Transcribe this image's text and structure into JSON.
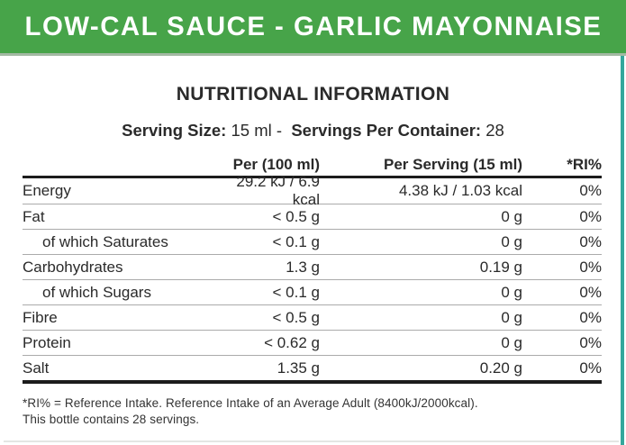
{
  "banner": {
    "title": "LOW-CAL SAUCE - GARLIC MAYONNAISE"
  },
  "section_title": "NUTRITIONAL INFORMATION",
  "serving_info": {
    "serving_size_label": "Serving Size:",
    "serving_size_value": "15 ml",
    "separator": "-",
    "servings_label": "Servings Per Container:",
    "servings_value": "28"
  },
  "table": {
    "columns": {
      "nutrient": "",
      "per_100": "Per (100 ml)",
      "per_serving": "Per Serving (15 ml)",
      "ri": "*RI%"
    },
    "rows": [
      {
        "name": "Energy",
        "per100": "29.2 kJ / 6.9 kcal",
        "perServing": "4.38 kJ / 1.03 kcal",
        "ri": "0%",
        "indent": false
      },
      {
        "name": "Fat",
        "per100": "< 0.5 g",
        "perServing": "0 g",
        "ri": "0%",
        "indent": false
      },
      {
        "name": "of which Saturates",
        "per100": "< 0.1 g",
        "perServing": "0 g",
        "ri": "0%",
        "indent": true
      },
      {
        "name": "Carbohydrates",
        "per100": "1.3 g",
        "perServing": "0.19 g",
        "ri": "0%",
        "indent": false
      },
      {
        "name": "of which Sugars",
        "per100": "< 0.1 g",
        "perServing": "0 g",
        "ri": "0%",
        "indent": true
      },
      {
        "name": "Fibre",
        "per100": "< 0.5 g",
        "perServing": "0 g",
        "ri": "0%",
        "indent": false
      },
      {
        "name": "Protein",
        "per100": "< 0.62 g",
        "perServing": "0 g",
        "ri": "0%",
        "indent": false
      },
      {
        "name": "Salt",
        "per100": "1.35 g",
        "perServing": "0.20 g",
        "ri": "0%",
        "indent": false
      }
    ]
  },
  "footnote": {
    "line1": "*RI% = Reference Intake. Reference Intake of an Average Adult (8400kJ/2000kcal).",
    "line2": "This bottle contains 28 servings."
  },
  "colors": {
    "banner-green": "#47a449",
    "banner-edge": "#a3b9a3",
    "banner-text": "#ffffff",
    "edge-teal": "#35a79c",
    "rule-dark": "#1c1c1c",
    "rule-light": "#ababab",
    "text-dark": "#2a2a2a"
  }
}
